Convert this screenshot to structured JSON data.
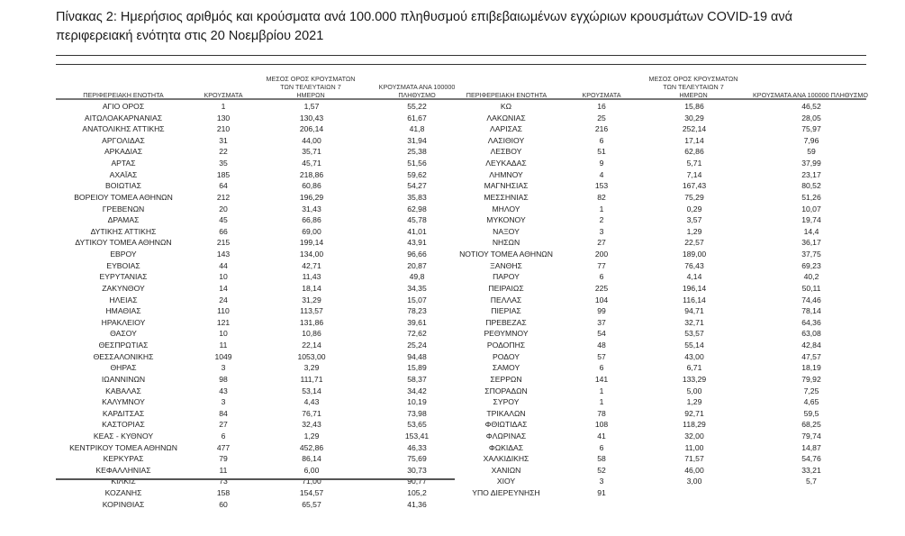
{
  "title": "Πίνακας 2: Ημερήσιος αριθμός και κρούσματα ανά 100.000 πληθυσμού επιβεβαιωμένων εγχώριων κρουσμάτων COVID-19 ανά περιφερειακή ενότητα στις 20 Νοεμβρίου 2021",
  "headers": {
    "region": "ΠΕΡΙΦΕΡΕΙΑΚΗ ΕΝΟΤΗΤΑ",
    "cases": "ΚΡΟΥΣΜΑΤΑ",
    "avg7": "ΜΕΣΟΣ ΟΡΟΣ ΚΡΟΥΣΜΑΤΩΝ ΤΩΝ ΤΕΛΕΥΤΑΙΩΝ 7 ΗΜΕΡΩΝ",
    "per100k": "ΚΡΟΥΣΜΑΤΑ ΑΝΑ 100000 ΠΛΗΘΥΣΜΟ"
  },
  "left_rows": [
    [
      "ΑΓΙΟ ΟΡΟΣ",
      "1",
      "1,57",
      "55,22"
    ],
    [
      "ΑΙΤΩΛΟΑΚΑΡΝΑΝΙΑΣ",
      "130",
      "130,43",
      "61,67"
    ],
    [
      "ΑΝΑΤΟΛΙΚΗΣ ΑΤΤΙΚΗΣ",
      "210",
      "206,14",
      "41,8"
    ],
    [
      "ΑΡΓΟΛΙΔΑΣ",
      "31",
      "44,00",
      "31,94"
    ],
    [
      "ΑΡΚΑΔΙΑΣ",
      "22",
      "35,71",
      "25,38"
    ],
    [
      "ΑΡΤΑΣ",
      "35",
      "45,71",
      "51,56"
    ],
    [
      "ΑΧΑΪΑΣ",
      "185",
      "218,86",
      "59,62"
    ],
    [
      "ΒΟΙΩΤΙΑΣ",
      "64",
      "60,86",
      "54,27"
    ],
    [
      "ΒΟΡΕΙΟΥ ΤΟΜΕΑ ΑΘΗΝΩΝ",
      "212",
      "196,29",
      "35,83"
    ],
    [
      "ΓΡΕΒΕΝΩΝ",
      "20",
      "31,43",
      "62,98"
    ],
    [
      "ΔΡΑΜΑΣ",
      "45",
      "66,86",
      "45,78"
    ],
    [
      "ΔΥΤΙΚΗΣ ΑΤΤΙΚΗΣ",
      "66",
      "69,00",
      "41,01"
    ],
    [
      "ΔΥΤΙΚΟΥ ΤΟΜΕΑ ΑΘΗΝΩΝ",
      "215",
      "199,14",
      "43,91"
    ],
    [
      "ΕΒΡΟΥ",
      "143",
      "134,00",
      "96,66"
    ],
    [
      "ΕΥΒΟΙΑΣ",
      "44",
      "42,71",
      "20,87"
    ],
    [
      "ΕΥΡΥΤΑΝΙΑΣ",
      "10",
      "11,43",
      "49,8"
    ],
    [
      "ΖΑΚΥΝΘΟΥ",
      "14",
      "18,14",
      "34,35"
    ],
    [
      "ΗΛΕΙΑΣ",
      "24",
      "31,29",
      "15,07"
    ],
    [
      "ΗΜΑΘΙΑΣ",
      "110",
      "113,57",
      "78,23"
    ],
    [
      "ΗΡΑΚΛΕΙΟΥ",
      "121",
      "131,86",
      "39,61"
    ],
    [
      "ΘΑΣΟΥ",
      "10",
      "10,86",
      "72,62"
    ],
    [
      "ΘΕΣΠΡΩΤΙΑΣ",
      "11",
      "22,14",
      "25,24"
    ],
    [
      "ΘΕΣΣΑΛΟΝΙΚΗΣ",
      "1049",
      "1053,00",
      "94,48"
    ],
    [
      "ΘΗΡΑΣ",
      "3",
      "3,29",
      "15,89"
    ],
    [
      "ΙΩΑΝΝΙΝΩΝ",
      "98",
      "111,71",
      "58,37"
    ],
    [
      "ΚΑΒΑΛΑΣ",
      "43",
      "53,14",
      "34,42"
    ],
    [
      "ΚΑΛΥΜΝΟΥ",
      "3",
      "4,43",
      "10,19"
    ],
    [
      "ΚΑΡΔΙΤΣΑΣ",
      "84",
      "76,71",
      "73,98"
    ],
    [
      "ΚΑΣΤΟΡΙΑΣ",
      "27",
      "32,43",
      "53,65"
    ],
    [
      "ΚΕΑΣ - ΚΥΘΝΟΥ",
      "6",
      "1,29",
      "153,41"
    ],
    [
      "ΚΕΝΤΡΙΚΟΥ ΤΟΜΕΑ ΑΘΗΝΩΝ",
      "477",
      "452,86",
      "46,33"
    ],
    [
      "ΚΕΡΚΥΡΑΣ",
      "79",
      "86,14",
      "75,69"
    ],
    [
      "ΚΕΦΑΛΛΗΝΙΑΣ",
      "11",
      "6,00",
      "30,73"
    ],
    [
      "ΚΙΛΚΙΣ",
      "73",
      "71,00",
      "90,77"
    ],
    [
      "ΚΟΖΑΝΗΣ",
      "158",
      "154,57",
      "105,2"
    ],
    [
      "ΚΟΡΙΝΘΙΑΣ",
      "60",
      "65,57",
      "41,36"
    ]
  ],
  "right_rows": [
    [
      "ΚΩ",
      "16",
      "15,86",
      "46,52"
    ],
    [
      "ΛΑΚΩΝΙΑΣ",
      "25",
      "30,29",
      "28,05"
    ],
    [
      "ΛΑΡΙΣΑΣ",
      "216",
      "252,14",
      "75,97"
    ],
    [
      "ΛΑΣΙΘΙΟΥ",
      "6",
      "17,14",
      "7,96"
    ],
    [
      "ΛΕΣΒΟΥ",
      "51",
      "62,86",
      "59"
    ],
    [
      "ΛΕΥΚΑΔΑΣ",
      "9",
      "5,71",
      "37,99"
    ],
    [
      "ΛΗΜΝΟΥ",
      "4",
      "7,14",
      "23,17"
    ],
    [
      "ΜΑΓΝΗΣΙΑΣ",
      "153",
      "167,43",
      "80,52"
    ],
    [
      "ΜΕΣΣΗΝΙΑΣ",
      "82",
      "75,29",
      "51,26"
    ],
    [
      "ΜΗΛΟΥ",
      "1",
      "0,29",
      "10,07"
    ],
    [
      "ΜΥΚΟΝΟΥ",
      "2",
      "3,57",
      "19,74"
    ],
    [
      "ΝΑΞΟΥ",
      "3",
      "1,29",
      "14,4"
    ],
    [
      "ΝΗΣΩΝ",
      "27",
      "22,57",
      "36,17"
    ],
    [
      "ΝΟΤΙΟΥ ΤΟΜΕΑ ΑΘΗΝΩΝ",
      "200",
      "189,00",
      "37,75"
    ],
    [
      "ΞΑΝΘΗΣ",
      "77",
      "76,43",
      "69,23"
    ],
    [
      "ΠΑΡΟΥ",
      "6",
      "4,14",
      "40,2"
    ],
    [
      "ΠΕΙΡΑΙΩΣ",
      "225",
      "196,14",
      "50,11"
    ],
    [
      "ΠΕΛΛΑΣ",
      "104",
      "116,14",
      "74,46"
    ],
    [
      "ΠΙΕΡΙΑΣ",
      "99",
      "94,71",
      "78,14"
    ],
    [
      "ΠΡΕΒΕΖΑΣ",
      "37",
      "32,71",
      "64,36"
    ],
    [
      "ΡΕΘΥΜΝΟΥ",
      "54",
      "53,57",
      "63,08"
    ],
    [
      "ΡΟΔΟΠΗΣ",
      "48",
      "55,14",
      "42,84"
    ],
    [
      "ΡΟΔΟΥ",
      "57",
      "43,00",
      "47,57"
    ],
    [
      "ΣΑΜΟΥ",
      "6",
      "6,71",
      "18,19"
    ],
    [
      "ΣΕΡΡΩΝ",
      "141",
      "133,29",
      "79,92"
    ],
    [
      "ΣΠΟΡΑΔΩΝ",
      "1",
      "5,00",
      "7,25"
    ],
    [
      "ΣΥΡΟΥ",
      "1",
      "1,29",
      "4,65"
    ],
    [
      "ΤΡΙΚΑΛΩΝ",
      "78",
      "92,71",
      "59,5"
    ],
    [
      "ΦΘΙΩΤΙΔΑΣ",
      "108",
      "118,29",
      "68,25"
    ],
    [
      "ΦΛΩΡΙΝΑΣ",
      "41",
      "32,00",
      "79,74"
    ],
    [
      "ΦΩΚΙΔΑΣ",
      "6",
      "11,00",
      "14,87"
    ],
    [
      "ΧΑΛΚΙΔΙΚΗΣ",
      "58",
      "71,57",
      "54,76"
    ],
    [
      "ΧΑΝΙΩΝ",
      "52",
      "46,00",
      "33,21"
    ],
    [
      "ΧΙΟΥ",
      "3",
      "3,00",
      "5,7"
    ],
    [
      "ΥΠΟ ΔΙΕΡΕΥΝΗΣΗ",
      "91",
      "",
      ""
    ]
  ]
}
